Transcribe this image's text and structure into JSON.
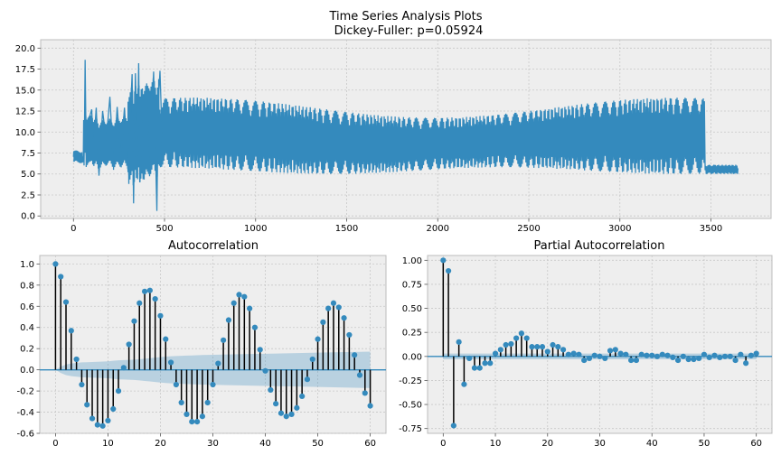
{
  "figure": {
    "suptitle_lines": [
      "Time Series Analysis Plots",
      "Dickey-Fuller: p=0.05924"
    ]
  },
  "colors": {
    "line": "#348abd",
    "stem": "#000000",
    "marker": "#348abd",
    "confband": "#348abd",
    "bg": "#eeeeee",
    "grid": "#c8c8c8"
  },
  "chart_data": [
    {
      "id": "ts",
      "type": "line",
      "title": "Time Series Analysis Plots\nDickey-Fuller: p=0.05924",
      "xlabel": "",
      "ylabel": "",
      "xlim": [
        -180,
        3830
      ],
      "ylim": [
        -0.3,
        21.0
      ],
      "xticks": [
        0,
        500,
        1000,
        1500,
        2000,
        2500,
        3000,
        3500
      ],
      "yticks": [
        0.0,
        2.5,
        5.0,
        7.5,
        10.0,
        12.5,
        15.0,
        17.5,
        20.0
      ],
      "grid": true,
      "n_points": 3650,
      "x": [
        0,
        30,
        55,
        60,
        64,
        70,
        85,
        100,
        110,
        125,
        140,
        160,
        180,
        200,
        220,
        240,
        260,
        280,
        300,
        315,
        322,
        330,
        340,
        350,
        358,
        365,
        375,
        385,
        400,
        420,
        440,
        458,
        465,
        475,
        490,
        500,
        520,
        540,
        560,
        600,
        650,
        700,
        800,
        900,
        1000,
        1100,
        1200,
        1300,
        1400,
        1500,
        1600,
        1700,
        1800,
        1900,
        2000,
        2100,
        2200,
        2300,
        2400,
        2500,
        2600,
        2700,
        2800,
        2900,
        3000,
        3100,
        3200,
        3300,
        3400,
        3460,
        3470,
        3480,
        3500,
        3550,
        3600,
        3650
      ],
      "y": [
        6.5,
        7.5,
        6.8,
        9.2,
        18.6,
        7.2,
        11.5,
        12.7,
        8.0,
        12.9,
        4.8,
        12.5,
        9.0,
        14.2,
        6.0,
        13.0,
        7.0,
        12.9,
        5.2,
        13.4,
        16.9,
        1.5,
        17.0,
        6.0,
        18.2,
        4.0,
        13.1,
        5.0,
        14.2,
        6.8,
        17.2,
        0.6,
        13.1,
        17.3,
        7.0,
        13.2,
        4.9,
        13.3,
        7.0,
        13.8,
        4.8,
        14.2,
        5.8,
        13.7,
        5.2,
        14.2,
        5.5,
        13.5,
        5.0,
        14.4,
        5.0,
        13.6,
        4.9,
        13.9,
        5.1,
        13.4,
        4.8,
        14.1,
        5.1,
        13.5,
        5.0,
        14.0,
        4.9,
        13.5,
        5.1,
        14.1,
        5.0,
        14.3,
        4.8,
        14.8,
        4.6,
        6.0,
        5.3,
        5.8,
        5.9,
        6.3
      ],
      "series": [
        {
          "values_summary": "oscillating series around 9.5 with amplitude ~4.5; burst near index 300-470; quiet tail after 3470"
        }
      ]
    },
    {
      "id": "acf",
      "type": "stem",
      "title": "Autocorrelation",
      "xlabel": "",
      "ylabel": "",
      "xlim": [
        -3,
        63
      ],
      "ylim": [
        -0.6,
        1.08
      ],
      "xticks": [
        0,
        10,
        20,
        30,
        40,
        50,
        60
      ],
      "yticks": [
        -0.6,
        -0.4,
        -0.2,
        0.0,
        0.2,
        0.4,
        0.6,
        0.8,
        1.0
      ],
      "grid": true,
      "lags": [
        0,
        1,
        2,
        3,
        4,
        5,
        6,
        7,
        8,
        9,
        10,
        11,
        12,
        13,
        14,
        15,
        16,
        17,
        18,
        19,
        20,
        21,
        22,
        23,
        24,
        25,
        26,
        27,
        28,
        29,
        30,
        31,
        32,
        33,
        34,
        35,
        36,
        37,
        38,
        39,
        40,
        41,
        42,
        43,
        44,
        45,
        46,
        47,
        48,
        49,
        50,
        51,
        52,
        53,
        54,
        55,
        56,
        57,
        58,
        59,
        60
      ],
      "values": [
        1.0,
        0.88,
        0.64,
        0.37,
        0.1,
        -0.14,
        -0.33,
        -0.46,
        -0.52,
        -0.53,
        -0.48,
        -0.37,
        -0.2,
        0.02,
        0.24,
        0.46,
        0.63,
        0.74,
        0.75,
        0.67,
        0.51,
        0.29,
        0.07,
        -0.14,
        -0.31,
        -0.42,
        -0.49,
        -0.49,
        -0.44,
        -0.31,
        -0.14,
        0.06,
        0.28,
        0.47,
        0.63,
        0.71,
        0.69,
        0.58,
        0.4,
        0.19,
        -0.01,
        -0.19,
        -0.32,
        -0.41,
        -0.44,
        -0.42,
        -0.36,
        -0.25,
        -0.09,
        0.1,
        0.29,
        0.45,
        0.58,
        0.63,
        0.59,
        0.49,
        0.33,
        0.14,
        -0.05,
        -0.22,
        -0.34
      ],
      "confidence_band": [
        0.0,
        0.03,
        0.05,
        0.06,
        0.065,
        0.07,
        0.072,
        0.074,
        0.076,
        0.078,
        0.08,
        0.085,
        0.09,
        0.092,
        0.094,
        0.096,
        0.1,
        0.105,
        0.11,
        0.115,
        0.12,
        0.125,
        0.128,
        0.13,
        0.132,
        0.134,
        0.136,
        0.138,
        0.14,
        0.141,
        0.142,
        0.143,
        0.144,
        0.145,
        0.146,
        0.147,
        0.148,
        0.149,
        0.15,
        0.151,
        0.152,
        0.153,
        0.154,
        0.155,
        0.156,
        0.157,
        0.158,
        0.159,
        0.16,
        0.161,
        0.162,
        0.163,
        0.164,
        0.165,
        0.166,
        0.167,
        0.168,
        0.169,
        0.17,
        0.171,
        0.172
      ]
    },
    {
      "id": "pacf",
      "type": "stem",
      "title": "Partial Autocorrelation",
      "xlabel": "",
      "ylabel": "",
      "xlim": [
        -3,
        63
      ],
      "ylim": [
        -0.8,
        1.05
      ],
      "xticks": [
        0,
        10,
        20,
        30,
        40,
        50,
        60
      ],
      "yticks": [
        -0.75,
        -0.5,
        -0.25,
        0.0,
        0.25,
        0.5,
        0.75,
        1.0
      ],
      "grid": true,
      "lags": [
        0,
        1,
        2,
        3,
        4,
        5,
        6,
        7,
        8,
        9,
        10,
        11,
        12,
        13,
        14,
        15,
        16,
        17,
        18,
        19,
        20,
        21,
        22,
        23,
        24,
        25,
        26,
        27,
        28,
        29,
        30,
        31,
        32,
        33,
        34,
        35,
        36,
        37,
        38,
        39,
        40,
        41,
        42,
        43,
        44,
        45,
        46,
        47,
        48,
        49,
        50,
        51,
        52,
        53,
        54,
        55,
        56,
        57,
        58,
        59,
        60
      ],
      "values": [
        1.0,
        0.89,
        -0.72,
        0.15,
        -0.29,
        -0.02,
        -0.12,
        -0.12,
        -0.07,
        -0.07,
        0.03,
        0.07,
        0.12,
        0.13,
        0.19,
        0.24,
        0.19,
        0.1,
        0.1,
        0.1,
        0.05,
        0.12,
        0.1,
        0.07,
        0.02,
        0.03,
        0.02,
        -0.04,
        -0.02,
        0.01,
        0.0,
        -0.02,
        0.06,
        0.07,
        0.03,
        0.02,
        -0.04,
        -0.04,
        0.02,
        0.01,
        0.01,
        0.0,
        0.02,
        0.01,
        -0.01,
        -0.04,
        0.0,
        -0.03,
        -0.03,
        -0.02,
        0.02,
        -0.01,
        0.01,
        -0.01,
        0.0,
        0.0,
        -0.04,
        0.02,
        -0.07,
        0.01,
        0.03
      ],
      "confidence_band": 0.03
    }
  ]
}
